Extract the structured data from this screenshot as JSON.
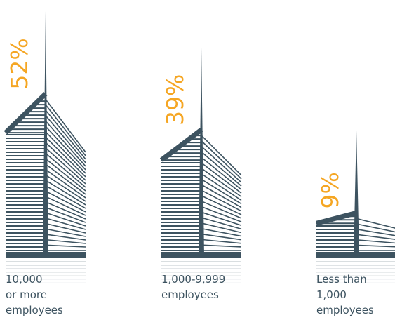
{
  "chart_data": {
    "type": "building",
    "categories": [
      [
        "10,000",
        "or more",
        "employees"
      ],
      [
        "1,000-9,999",
        "employees"
      ],
      [
        "Less than",
        "1,000",
        "employees"
      ]
    ],
    "values": [
      52,
      39,
      9
    ],
    "value_labels": [
      "52%",
      "39%",
      "9%"
    ],
    "color": "#3d5360",
    "label_color": "#f5a623"
  }
}
